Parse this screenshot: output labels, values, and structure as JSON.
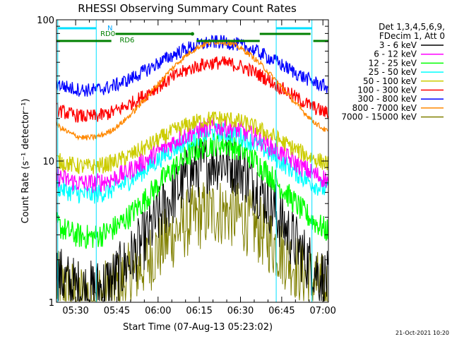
{
  "chart_data": {
    "type": "line",
    "title": "RHESSI Observing Summary Count Rates",
    "xlabel": "Start Time (07-Aug-13 05:23:02)",
    "ylabel": "Count Rate (s⁻¹ detector⁻¹)",
    "y_scale": "log",
    "ylim": [
      1,
      100
    ],
    "xlim": [
      "05:23:02",
      "07:02:00"
    ],
    "x_ticks": [
      "05:30",
      "05:45",
      "06:00",
      "06:15",
      "06:30",
      "06:45",
      "07:00"
    ],
    "y_ticks": [
      "1",
      "10",
      "100"
    ],
    "legend_header": [
      "Det 1,3,4,5,6,9,",
      "FDecim 1, Att 0"
    ],
    "legend_position": "right",
    "series": [
      {
        "name": "3 - 6 keV",
        "color": "#000000",
        "level": 3.5,
        "amp": 0.46,
        "noise": 0.22
      },
      {
        "name": "6 - 12 keV",
        "color": "#ff00ff",
        "level": 11.0,
        "amp": 0.2,
        "noise": 0.07
      },
      {
        "name": "12 - 25 keV",
        "color": "#00ff00",
        "level": 6.2,
        "amp": 0.33,
        "noise": 0.09
      },
      {
        "name": "25 - 50 keV",
        "color": "#00ffff",
        "level": 9.6,
        "amp": 0.22,
        "noise": 0.07
      },
      {
        "name": "50 - 100 keV",
        "color": "#cccc00",
        "level": 13.5,
        "amp": 0.17,
        "noise": 0.06
      },
      {
        "name": "100 - 300 keV",
        "color": "#ff0000",
        "level": 32.0,
        "amp": 0.19,
        "noise": 0.05
      },
      {
        "name": "300 - 800 keV",
        "color": "#0000ff",
        "level": 47.0,
        "amp": 0.17,
        "noise": 0.05
      },
      {
        "name": "800 - 7000 keV",
        "color": "#ff8800",
        "level": 32.0,
        "amp": 0.34,
        "noise": 0.02
      },
      {
        "name": "7000 - 15000 keV",
        "color": "#808000",
        "level": 2.2,
        "amp": 0.3,
        "noise": 0.25
      }
    ],
    "annotations": [
      {
        "text": "N",
        "color": "#00aaff"
      },
      {
        "text": "RD0",
        "color": "#008000"
      },
      {
        "text": "RD6",
        "color": "#008000"
      }
    ],
    "footer_date": "21-Oct-2021 10:20"
  }
}
